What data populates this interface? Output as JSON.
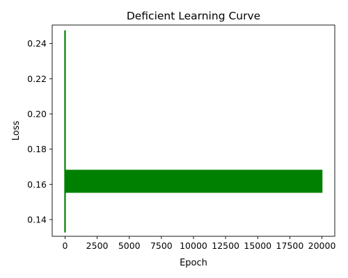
{
  "chart_data": {
    "type": "line",
    "title": "Deficient Learning Curve",
    "xlabel": "Epoch",
    "ylabel": "Loss",
    "xlim": [
      -1000,
      21000
    ],
    "ylim": [
      0.1305,
      0.2505
    ],
    "xticks": [
      0,
      2500,
      5000,
      7500,
      10000,
      12500,
      15000,
      17500,
      20000
    ],
    "yticks": [
      0.14,
      0.16,
      0.18,
      0.2,
      0.22,
      0.24
    ],
    "ytick_labels": [
      "0.14",
      "0.16",
      "0.18",
      "0.20",
      "0.22",
      "0.24"
    ],
    "grid": false,
    "series": [
      {
        "color": "#008000",
        "initial_spike": {
          "x": [
            0,
            0,
            0,
            0,
            0
          ],
          "y": [
            0.2475,
            0.228,
            0.202,
            0.133,
            0.16
          ]
        },
        "oscillation": {
          "x_start": 0,
          "x_end": 20000,
          "y_low": 0.1555,
          "y_high": 0.168
        }
      }
    ]
  }
}
